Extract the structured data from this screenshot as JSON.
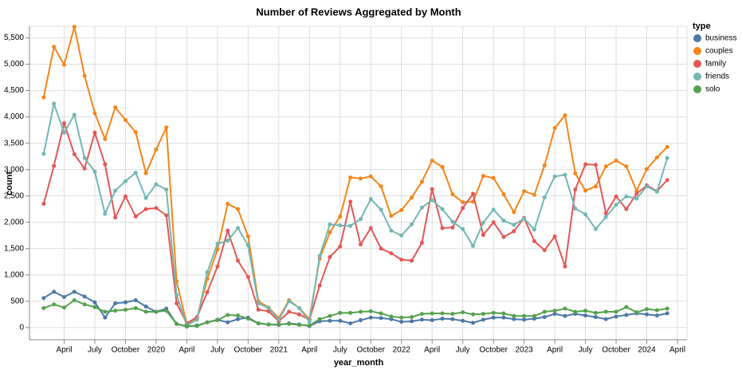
{
  "chart_data": {
    "type": "line",
    "title": "Number of Reviews Aggregated by Month",
    "x_label": "year_month",
    "y_label": "count",
    "legend_title": "type",
    "legend_position": "right",
    "grid": true,
    "x": [
      "2019-02",
      "2019-03",
      "2019-04",
      "2019-05",
      "2019-06",
      "2019-07",
      "2019-08",
      "2019-09",
      "2019-10",
      "2019-11",
      "2019-12",
      "2020-01",
      "2020-02",
      "2020-03",
      "2020-04",
      "2020-05",
      "2020-06",
      "2020-07",
      "2020-08",
      "2020-09",
      "2020-10",
      "2020-11",
      "2020-12",
      "2021-01",
      "2021-02",
      "2021-03",
      "2021-04",
      "2021-05",
      "2021-06",
      "2021-07",
      "2021-08",
      "2021-09",
      "2021-10",
      "2021-11",
      "2021-12",
      "2022-01",
      "2022-02",
      "2022-03",
      "2022-04",
      "2022-05",
      "2022-06",
      "2022-07",
      "2022-08",
      "2022-09",
      "2022-10",
      "2022-11",
      "2022-12",
      "2023-01",
      "2023-02",
      "2023-03",
      "2023-04",
      "2023-05",
      "2023-06",
      "2023-07",
      "2023-08",
      "2023-09",
      "2023-10",
      "2023-11",
      "2023-12",
      "2024-01",
      "2024-02",
      "2024-03"
    ],
    "xlim": [
      "2019-01",
      "2024-04"
    ],
    "xticks": [
      {
        "value": "2019-04",
        "label": "April"
      },
      {
        "value": "2019-07",
        "label": "July"
      },
      {
        "value": "2019-10",
        "label": "October"
      },
      {
        "value": "2020-01",
        "label": "2020"
      },
      {
        "value": "2020-04",
        "label": "April"
      },
      {
        "value": "2020-07",
        "label": "July"
      },
      {
        "value": "2020-10",
        "label": "October"
      },
      {
        "value": "2021-01",
        "label": "2021"
      },
      {
        "value": "2021-04",
        "label": "April"
      },
      {
        "value": "2021-07",
        "label": "July"
      },
      {
        "value": "2021-10",
        "label": "October"
      },
      {
        "value": "2022-01",
        "label": "2022"
      },
      {
        "value": "2022-04",
        "label": "April"
      },
      {
        "value": "2022-07",
        "label": "July"
      },
      {
        "value": "2022-10",
        "label": "October"
      },
      {
        "value": "2023-01",
        "label": "2023"
      },
      {
        "value": "2023-04",
        "label": "April"
      },
      {
        "value": "2023-07",
        "label": "July"
      },
      {
        "value": "2023-10",
        "label": "October"
      },
      {
        "value": "2024-01",
        "label": "2024"
      },
      {
        "value": "2024-04",
        "label": "April"
      }
    ],
    "ylim": [
      -230,
      5720
    ],
    "yticks": [
      0,
      500,
      {
        "value": 1000,
        "label": "1,000"
      },
      {
        "value": 1500,
        "label": "1,500"
      },
      {
        "value": 2000,
        "label": "2,000"
      },
      {
        "value": 2500,
        "label": "2,500"
      },
      {
        "value": 3000,
        "label": "3,000"
      },
      {
        "value": 3500,
        "label": "3,500"
      },
      {
        "value": 4000,
        "label": "4,000"
      },
      {
        "value": 4500,
        "label": "4,500"
      },
      {
        "value": 5000,
        "label": "5,000"
      },
      {
        "value": 5500,
        "label": "5,500"
      }
    ],
    "series": [
      {
        "name": "business",
        "color": "#4c78a8",
        "values": [
          560,
          680,
          580,
          680,
          590,
          480,
          190,
          460,
          480,
          520,
          400,
          300,
          360,
          70,
          20,
          40,
          100,
          150,
          100,
          160,
          190,
          80,
          60,
          50,
          80,
          60,
          30,
          120,
          130,
          130,
          80,
          140,
          190,
          180,
          160,
          110,
          120,
          150,
          140,
          170,
          160,
          130,
          90,
          150,
          190,
          190,
          160,
          150,
          170,
          200,
          260,
          220,
          260,
          230,
          200,
          160,
          210,
          240,
          270,
          250,
          230,
          270
        ]
      },
      {
        "name": "couples",
        "color": "#f58518",
        "values": [
          4370,
          5330,
          4990,
          5710,
          4780,
          4070,
          3580,
          4180,
          3940,
          3710,
          2930,
          3380,
          3800,
          880,
          70,
          190,
          920,
          1480,
          2350,
          2250,
          1730,
          500,
          380,
          180,
          520,
          370,
          160,
          1310,
          1810,
          2110,
          2850,
          2830,
          2870,
          2680,
          2120,
          2230,
          2470,
          2770,
          3170,
          3050,
          2530,
          2380,
          2390,
          2880,
          2840,
          2530,
          2190,
          2590,
          2520,
          3080,
          3790,
          4030,
          2930,
          2600,
          2680,
          3060,
          3170,
          3060,
          2600,
          3010,
          3230,
          3430
        ]
      },
      {
        "name": "family",
        "color": "#e45756",
        "values": [
          2350,
          3070,
          3880,
          3290,
          3020,
          3700,
          3100,
          2090,
          2490,
          2110,
          2250,
          2270,
          2130,
          460,
          80,
          200,
          670,
          1160,
          1840,
          1270,
          960,
          340,
          310,
          120,
          300,
          250,
          150,
          800,
          1340,
          1540,
          2390,
          1580,
          1890,
          1500,
          1410,
          1290,
          1270,
          1610,
          2630,
          1890,
          1900,
          2270,
          2540,
          1760,
          2000,
          1720,
          1830,
          2080,
          1640,
          1470,
          1730,
          1160,
          2620,
          3100,
          3090,
          2170,
          2490,
          2250,
          2540,
          2700,
          2590,
          2800
        ]
      },
      {
        "name": "friends",
        "color": "#72b7b2",
        "values": [
          3300,
          4250,
          3700,
          4040,
          3220,
          2960,
          2160,
          2600,
          2780,
          2940,
          2460,
          2720,
          2620,
          620,
          40,
          150,
          1050,
          1590,
          1650,
          1890,
          1560,
          460,
          370,
          150,
          500,
          370,
          110,
          1360,
          1960,
          1940,
          1930,
          2060,
          2440,
          2240,
          1840,
          1750,
          1960,
          2280,
          2420,
          2250,
          2010,
          1870,
          1550,
          1990,
          2240,
          2030,
          1950,
          2070,
          1860,
          2470,
          2870,
          2900,
          2260,
          2150,
          1870,
          2100,
          2330,
          2490,
          2450,
          2680,
          2580,
          3220
        ]
      },
      {
        "name": "solo",
        "color": "#54a24b",
        "values": [
          370,
          440,
          380,
          520,
          440,
          390,
          300,
          320,
          340,
          370,
          300,
          300,
          320,
          70,
          30,
          30,
          100,
          140,
          240,
          230,
          170,
          80,
          60,
          60,
          70,
          50,
          40,
          160,
          220,
          280,
          280,
          300,
          310,
          270,
          210,
          190,
          200,
          260,
          270,
          270,
          260,
          290,
          250,
          260,
          280,
          270,
          220,
          220,
          220,
          300,
          320,
          360,
          300,
          320,
          280,
          300,
          300,
          390,
          290,
          350,
          330,
          360
        ]
      }
    ]
  }
}
